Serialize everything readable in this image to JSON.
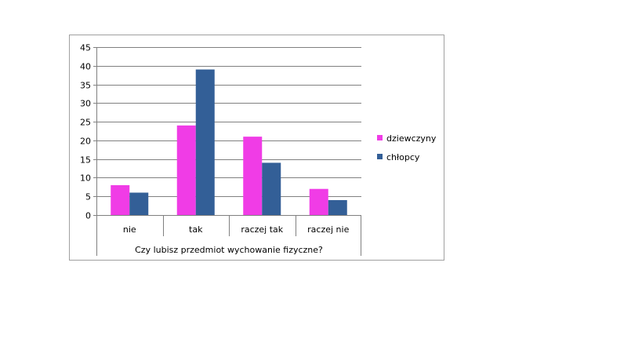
{
  "colors": {
    "background": "#ffffff",
    "border": "#a0a0a0",
    "grid": "#808080",
    "axis": "#808080"
  },
  "chart_data": {
    "type": "bar",
    "categories": [
      "nie",
      "tak",
      "raczej tak",
      "raczej nie"
    ],
    "series": [
      {
        "name": "dziewczyny",
        "color": "#f03ce6",
        "values": [
          8,
          24,
          21,
          7
        ]
      },
      {
        "name": "chłopcy",
        "color": "#335f97",
        "values": [
          6,
          39,
          14,
          4
        ]
      }
    ],
    "title": "",
    "xlabel": "Czy lubisz przedmiot wychowanie fizyczne?",
    "ylabel": "",
    "ylim": [
      0,
      45
    ],
    "yticks": [
      0,
      5,
      10,
      15,
      20,
      25,
      30,
      35,
      40,
      45
    ],
    "grid": true,
    "legend_position": "right"
  }
}
